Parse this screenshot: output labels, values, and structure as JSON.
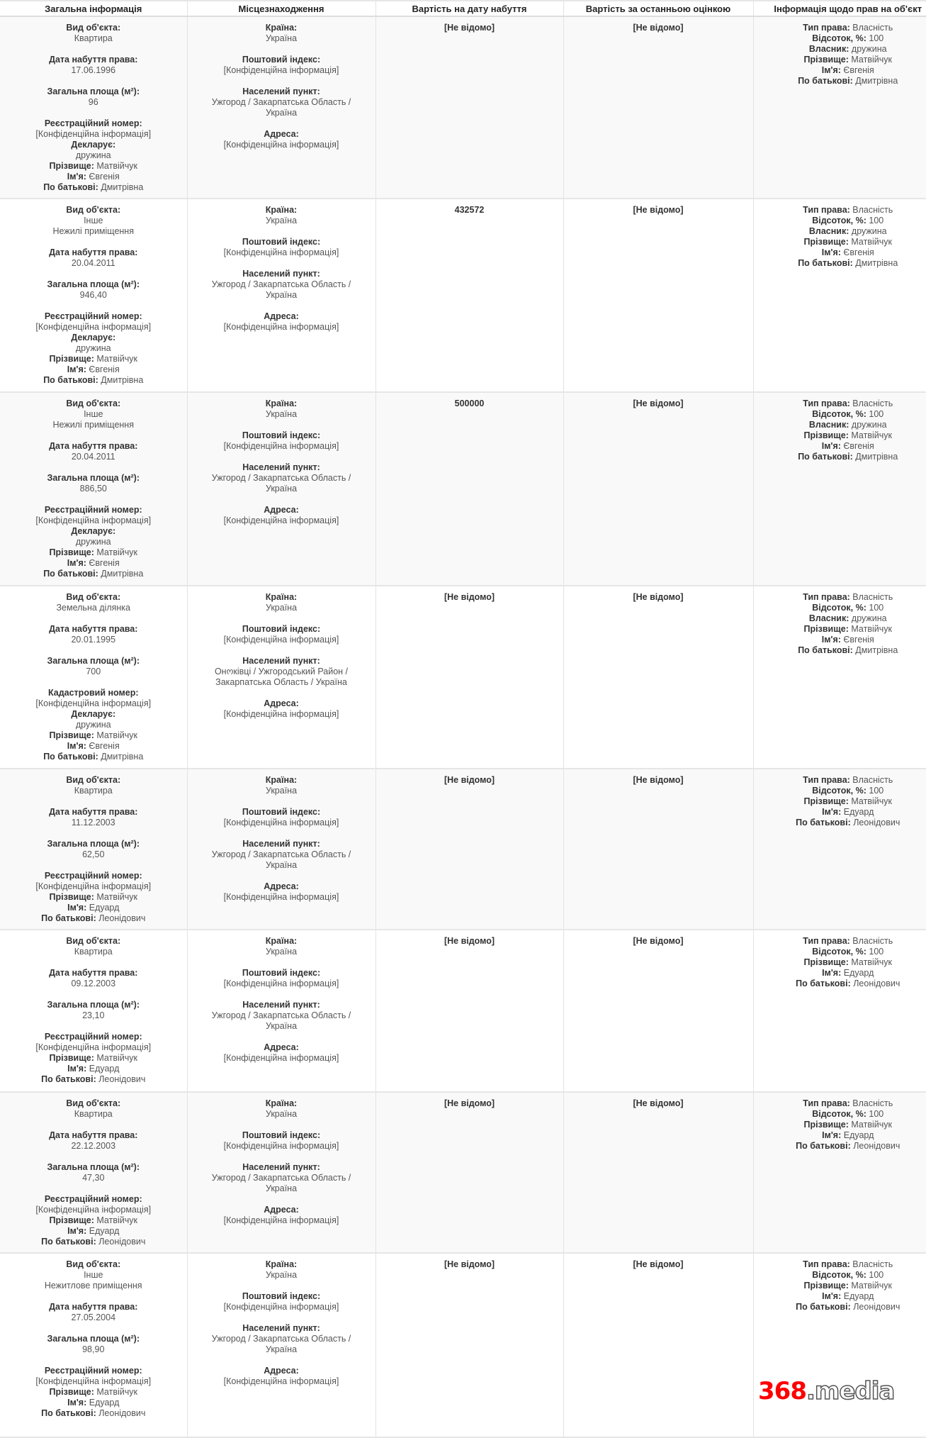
{
  "headers": [
    "Загальна інформація",
    "Місцезнаходження",
    "Вартість на дату набуття",
    "Вартість за останньою оцінкою",
    "Інформація щодо прав на об'єкт"
  ],
  "logo": {
    "text_number": "368",
    "text_domain": ".media",
    "brand_color": "#ff0000"
  },
  "colors": {
    "row_alt": "#f9f9f9",
    "border": "#e2e2e2"
  },
  "rows": [
    {
      "general": [
        [
          {
            "l": "Вид об'єкта:",
            "v": [
              "Квартира"
            ]
          }
        ],
        [
          {
            "l": "Дата набуття права:",
            "v": [
              "17.06.1996"
            ]
          }
        ],
        [
          {
            "l": "Загальна площа (м²):",
            "v": [
              "96"
            ]
          }
        ],
        [
          {
            "l": "Реєстраційний номер:",
            "v": [
              "[Конфіденційна інформація]"
            ]
          },
          {
            "l": "Декларує:",
            "v": [
              "дружина"
            ]
          },
          {
            "l": "Прізвище:",
            "i": "Матвійчук"
          },
          {
            "l": "Ім'я:",
            "i": "Євгенія"
          },
          {
            "l": "По батькові:",
            "i": "Дмитрівна"
          }
        ]
      ],
      "location": [
        [
          {
            "l": "Країна:",
            "v": [
              "Україна"
            ]
          }
        ],
        [
          {
            "l": "Поштовий індекс:",
            "v": [
              "[Конфіденційна інформація]"
            ]
          }
        ],
        [
          {
            "l": "Населений пункт:",
            "v": [
              "Ужгород / Закарпатська Область /",
              "Україна"
            ]
          }
        ],
        [
          {
            "l": "Адреса:",
            "v": [
              "[Конфіденційна інформація]"
            ]
          }
        ]
      ],
      "cost_acquired": "[Не відомо]",
      "cost_last": "[Не відомо]",
      "rights": [
        {
          "l": "Тип права:",
          "i": "Власність"
        },
        {
          "l": "Відсоток, %:",
          "i": "100"
        },
        {
          "l": "Власник:",
          "i": "дружина"
        },
        {
          "l": "Прізвище:",
          "i": "Матвійчук"
        },
        {
          "l": "Ім'я:",
          "i": "Євгенія"
        },
        {
          "l": "По батькові:",
          "i": "Дмитрівна"
        }
      ]
    },
    {
      "general": [
        [
          {
            "l": "Вид об'єкта:",
            "v": [
              "Інше",
              "Нежилі приміщення"
            ]
          }
        ],
        [
          {
            "l": "Дата набуття права:",
            "v": [
              "20.04.2011"
            ]
          }
        ],
        [
          {
            "l": "Загальна площа (м²):",
            "v": [
              "946,40"
            ]
          }
        ],
        [
          {
            "l": "Реєстраційний номер:",
            "v": [
              "[Конфіденційна інформація]"
            ]
          },
          {
            "l": "Декларує:",
            "v": [
              "дружина"
            ]
          },
          {
            "l": "Прізвище:",
            "i": "Матвійчук"
          },
          {
            "l": "Ім'я:",
            "i": "Євгенія"
          },
          {
            "l": "По батькові:",
            "i": "Дмитрівна"
          }
        ]
      ],
      "location": [
        [
          {
            "l": "Країна:",
            "v": [
              "Україна"
            ]
          }
        ],
        [
          {
            "l": "Поштовий індекс:",
            "v": [
              "[Конфіденційна інформація]"
            ]
          }
        ],
        [
          {
            "l": "Населений пункт:",
            "v": [
              "Ужгород / Закарпатська Область /",
              "Україна"
            ]
          }
        ],
        [
          {
            "l": "Адреса:",
            "v": [
              "[Конфіденційна інформація]"
            ]
          }
        ]
      ],
      "cost_acquired": "432572",
      "cost_last": "[Не відомо]",
      "rights": [
        {
          "l": "Тип права:",
          "i": "Власність"
        },
        {
          "l": "Відсоток, %:",
          "i": "100"
        },
        {
          "l": "Власник:",
          "i": "дружина"
        },
        {
          "l": "Прізвище:",
          "i": "Матвійчук"
        },
        {
          "l": "Ім'я:",
          "i": "Євгенія"
        },
        {
          "l": "По батькові:",
          "i": "Дмитрівна"
        }
      ]
    },
    {
      "general": [
        [
          {
            "l": "Вид об'єкта:",
            "v": [
              "Інше",
              "Нежилі приміщення"
            ]
          }
        ],
        [
          {
            "l": "Дата набуття права:",
            "v": [
              "20.04.2011"
            ]
          }
        ],
        [
          {
            "l": "Загальна площа (м²):",
            "v": [
              "886,50"
            ]
          }
        ],
        [
          {
            "l": "Реєстраційний номер:",
            "v": [
              "[Конфіденційна інформація]"
            ]
          },
          {
            "l": "Декларує:",
            "v": [
              "дружина"
            ]
          },
          {
            "l": "Прізвище:",
            "i": "Матвійчук"
          },
          {
            "l": "Ім'я:",
            "i": "Євгенія"
          },
          {
            "l": "По батькові:",
            "i": "Дмитрівна"
          }
        ]
      ],
      "location": [
        [
          {
            "l": "Країна:",
            "v": [
              "Україна"
            ]
          }
        ],
        [
          {
            "l": "Поштовий індекс:",
            "v": [
              "[Конфіденційна інформація]"
            ]
          }
        ],
        [
          {
            "l": "Населений пункт:",
            "v": [
              "Ужгород / Закарпатська Область /",
              "Україна"
            ]
          }
        ],
        [
          {
            "l": "Адреса:",
            "v": [
              "[Конфіденційна інформація]"
            ]
          }
        ]
      ],
      "cost_acquired": "500000",
      "cost_last": "[Не відомо]",
      "rights": [
        {
          "l": "Тип права:",
          "i": "Власність"
        },
        {
          "l": "Відсоток, %:",
          "i": "100"
        },
        {
          "l": "Власник:",
          "i": "дружина"
        },
        {
          "l": "Прізвище:",
          "i": "Матвійчук"
        },
        {
          "l": "Ім'я:",
          "i": "Євгенія"
        },
        {
          "l": "По батькові:",
          "i": "Дмитрівна"
        }
      ]
    },
    {
      "general": [
        [
          {
            "l": "Вид об'єкта:",
            "v": [
              "Земельна ділянка"
            ]
          }
        ],
        [
          {
            "l": "Дата набуття права:",
            "v": [
              "20.01.1995"
            ]
          }
        ],
        [
          {
            "l": "Загальна площа (м²):",
            "v": [
              "700"
            ]
          }
        ],
        [
          {
            "l": "Кадастровий номер:",
            "v": [
              "[Конфіденційна інформація]"
            ]
          },
          {
            "l": "Декларує:",
            "v": [
              "дружина"
            ]
          },
          {
            "l": "Прізвище:",
            "i": "Матвійчук"
          },
          {
            "l": "Ім'я:",
            "i": "Євгенія"
          },
          {
            "l": "По батькові:",
            "i": "Дмитрівна"
          }
        ]
      ],
      "location": [
        [
          {
            "l": "Країна:",
            "v": [
              "Україна"
            ]
          }
        ],
        [
          {
            "l": "Поштовий індекс:",
            "v": [
              "[Конфіденційна інформація]"
            ]
          }
        ],
        [
          {
            "l": "Населений пункт:",
            "v": [
              "Онოківці / Ужгородський Район /",
              "Закарпатська Область / Україна"
            ]
          }
        ],
        [
          {
            "l": "Адреса:",
            "v": [
              "[Конфіденційна інформація]"
            ]
          }
        ]
      ],
      "cost_acquired": "[Не відомо]",
      "cost_last": "[Не відомо]",
      "rights": [
        {
          "l": "Тип права:",
          "i": "Власність"
        },
        {
          "l": "Відсоток, %:",
          "i": "100"
        },
        {
          "l": "Власник:",
          "i": "дружина"
        },
        {
          "l": "Прізвище:",
          "i": "Матвійчук"
        },
        {
          "l": "Ім'я:",
          "i": "Євгенія"
        },
        {
          "l": "По батькові:",
          "i": "Дмитрівна"
        }
      ]
    },
    {
      "general": [
        [
          {
            "l": "Вид об'єкта:",
            "v": [
              "Квартира"
            ]
          }
        ],
        [
          {
            "l": "Дата набуття права:",
            "v": [
              "11.12.2003"
            ]
          }
        ],
        [
          {
            "l": "Загальна площа (м²):",
            "v": [
              "62,50"
            ]
          }
        ],
        [
          {
            "l": "Реєстраційний номер:",
            "v": [
              "[Конфіденційна інформація]"
            ]
          },
          {
            "l": "Прізвище:",
            "i": "Матвійчук"
          },
          {
            "l": "Ім'я:",
            "i": "Едуард"
          },
          {
            "l": "По батькові:",
            "i": "Леонідович"
          }
        ]
      ],
      "location": [
        [
          {
            "l": "Країна:",
            "v": [
              "Україна"
            ]
          }
        ],
        [
          {
            "l": "Поштовий індекс:",
            "v": [
              "[Конфіденційна інформація]"
            ]
          }
        ],
        [
          {
            "l": "Населений пункт:",
            "v": [
              "Ужгород / Закарпатська Область /",
              "Україна"
            ]
          }
        ],
        [
          {
            "l": "Адреса:",
            "v": [
              "[Конфіденційна інформація]"
            ]
          }
        ]
      ],
      "cost_acquired": "[Не відомо]",
      "cost_last": "[Не відомо]",
      "rights": [
        {
          "l": "Тип права:",
          "i": "Власність"
        },
        {
          "l": "Відсоток, %:",
          "i": "100"
        },
        {
          "l": "Прізвище:",
          "i": "Матвійчук"
        },
        {
          "l": "Ім'я:",
          "i": "Едуард"
        },
        {
          "l": "По батькові:",
          "i": "Леонідович"
        }
      ]
    },
    {
      "general": [
        [
          {
            "l": "Вид об'єкта:",
            "v": [
              "Квартира"
            ]
          }
        ],
        [
          {
            "l": "Дата набуття права:",
            "v": [
              "09.12.2003"
            ]
          }
        ],
        [
          {
            "l": "Загальна площа (м²):",
            "v": [
              "23,10"
            ]
          }
        ],
        [
          {
            "l": "Реєстраційний номер:",
            "v": [
              "[Конфіденційна інформація]"
            ]
          },
          {
            "l": "Прізвище:",
            "i": "Матвійчук"
          },
          {
            "l": "Ім'я:",
            "i": "Едуард"
          },
          {
            "l": "По батькові:",
            "i": "Леонідович"
          }
        ]
      ],
      "location": [
        [
          {
            "l": "Країна:",
            "v": [
              "Україна"
            ]
          }
        ],
        [
          {
            "l": "Поштовий індекс:",
            "v": [
              "[Конфіденційна інформація]"
            ]
          }
        ],
        [
          {
            "l": "Населений пункт:",
            "v": [
              "Ужгород / Закарпатська Область /",
              "Україна"
            ]
          }
        ],
        [
          {
            "l": "Адреса:",
            "v": [
              "[Конфіденційна інформація]"
            ]
          }
        ]
      ],
      "cost_acquired": "[Не відомо]",
      "cost_last": "[Не відомо]",
      "rights": [
        {
          "l": "Тип права:",
          "i": "Власність"
        },
        {
          "l": "Відсоток, %:",
          "i": "100"
        },
        {
          "l": "Прізвище:",
          "i": "Матвійчук"
        },
        {
          "l": "Ім'я:",
          "i": "Едуард"
        },
        {
          "l": "По батькові:",
          "i": "Леонідович"
        }
      ]
    },
    {
      "general": [
        [
          {
            "l": "Вид об'єкта:",
            "v": [
              "Квартира"
            ]
          }
        ],
        [
          {
            "l": "Дата набуття права:",
            "v": [
              "22.12.2003"
            ]
          }
        ],
        [
          {
            "l": "Загальна площа (м²):",
            "v": [
              "47,30"
            ]
          }
        ],
        [
          {
            "l": "Реєстраційний номер:",
            "v": [
              "[Конфіденційна інформація]"
            ]
          },
          {
            "l": "Прізвище:",
            "i": "Матвійчук"
          },
          {
            "l": "Ім'я:",
            "i": "Едуард"
          },
          {
            "l": "По батькові:",
            "i": "Леонідович"
          }
        ]
      ],
      "location": [
        [
          {
            "l": "Країна:",
            "v": [
              "Україна"
            ]
          }
        ],
        [
          {
            "l": "Поштовий індекс:",
            "v": [
              "[Конфіденційна інформація]"
            ]
          }
        ],
        [
          {
            "l": "Населений пункт:",
            "v": [
              "Ужгород / Закарпатська Область /",
              "Україна"
            ]
          }
        ],
        [
          {
            "l": "Адреса:",
            "v": [
              "[Конфіденційна інформація]"
            ]
          }
        ]
      ],
      "cost_acquired": "[Не відомо]",
      "cost_last": "[Не відомо]",
      "rights": [
        {
          "l": "Тип права:",
          "i": "Власність"
        },
        {
          "l": "Відсоток, %:",
          "i": "100"
        },
        {
          "l": "Прізвище:",
          "i": "Матвійчук"
        },
        {
          "l": "Ім'я:",
          "i": "Едуард"
        },
        {
          "l": "По батькові:",
          "i": "Леонідович"
        }
      ]
    },
    {
      "general": [
        [
          {
            "l": "Вид об'єкта:",
            "v": [
              "Інше",
              "Нежитлове приміщення"
            ]
          }
        ],
        [
          {
            "l": "Дата набуття права:",
            "v": [
              "27.05.2004"
            ]
          }
        ],
        [
          {
            "l": "Загальна площа (м²):",
            "v": [
              "98,90"
            ]
          }
        ],
        [
          {
            "l": "Реєстраційний номер:",
            "v": [
              "[Конфіденційна інформація]"
            ]
          },
          {
            "l": "Прізвище:",
            "i": "Матвійчук"
          },
          {
            "l": "Ім'я:",
            "i": "Едуард"
          },
          {
            "l": "По батькові:",
            "i": "Леонідович"
          }
        ]
      ],
      "location": [
        [
          {
            "l": "Країна:",
            "v": [
              "Україна"
            ]
          }
        ],
        [
          {
            "l": "Поштовий індекс:",
            "v": [
              "[Конфіденційна інформація]"
            ]
          }
        ],
        [
          {
            "l": "Населений пункт:",
            "v": [
              "Ужгород / Закарпатська Область /",
              "Україна"
            ]
          }
        ],
        [
          {
            "l": "Адреса:",
            "v": [
              "[Конфіденційна інформація]"
            ]
          }
        ]
      ],
      "cost_acquired": "[Не відомо]",
      "cost_last": "[Не відомо]",
      "rights": [
        {
          "l": "Тип права:",
          "i": "Власність"
        },
        {
          "l": "Відсоток, %:",
          "i": "100"
        },
        {
          "l": "Прізвище:",
          "i": "Матвійчук"
        },
        {
          "l": "Ім'я:",
          "i": "Едуард"
        },
        {
          "l": "По батькові:",
          "i": "Леонідович"
        }
      ]
    }
  ]
}
